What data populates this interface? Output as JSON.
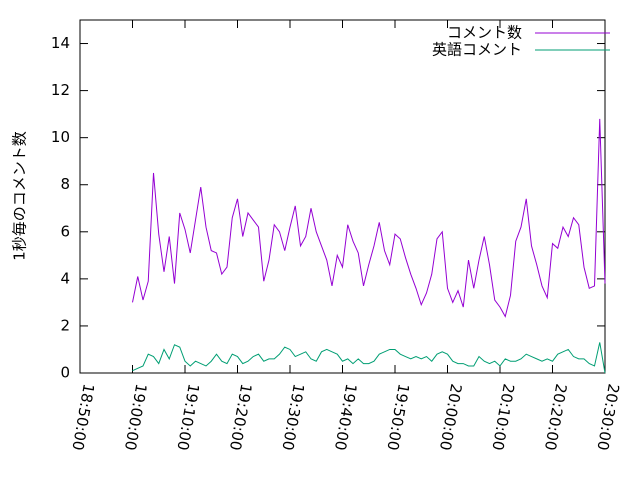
{
  "chart_data": {
    "type": "line",
    "ylabel": "1秒毎のコメント数",
    "xlim": [
      "18:50:00",
      "20:30:00"
    ],
    "xticks": [
      "18:50:00",
      "19:00:00",
      "19:10:00",
      "19:20:00",
      "19:30:00",
      "19:40:00",
      "19:50:00",
      "20:00:00",
      "20:10:00",
      "20:20:00",
      "20:30:00"
    ],
    "ylim": [
      0,
      15
    ],
    "yticks": [
      0,
      2,
      4,
      6,
      8,
      10,
      12,
      14
    ],
    "legend": "top-right",
    "x": [
      "19:00:00",
      "19:01:00",
      "19:02:00",
      "19:03:00",
      "19:04:00",
      "19:05:00",
      "19:06:00",
      "19:07:00",
      "19:08:00",
      "19:09:00",
      "19:10:00",
      "19:11:00",
      "19:12:00",
      "19:13:00",
      "19:14:00",
      "19:15:00",
      "19:16:00",
      "19:17:00",
      "19:18:00",
      "19:19:00",
      "19:20:00",
      "19:21:00",
      "19:22:00",
      "19:23:00",
      "19:24:00",
      "19:25:00",
      "19:26:00",
      "19:27:00",
      "19:28:00",
      "19:29:00",
      "19:30:00",
      "19:31:00",
      "19:32:00",
      "19:33:00",
      "19:34:00",
      "19:35:00",
      "19:36:00",
      "19:37:00",
      "19:38:00",
      "19:39:00",
      "19:40:00",
      "19:41:00",
      "19:42:00",
      "19:43:00",
      "19:44:00",
      "19:45:00",
      "19:46:00",
      "19:47:00",
      "19:48:00",
      "19:49:00",
      "19:50:00",
      "19:51:00",
      "19:52:00",
      "19:53:00",
      "19:54:00",
      "19:55:00",
      "19:56:00",
      "19:57:00",
      "19:58:00",
      "19:59:00",
      "20:00:00",
      "20:01:00",
      "20:02:00",
      "20:03:00",
      "20:04:00",
      "20:05:00",
      "20:06:00",
      "20:07:00",
      "20:08:00",
      "20:09:00",
      "20:10:00",
      "20:11:00",
      "20:12:00",
      "20:13:00",
      "20:14:00",
      "20:15:00",
      "20:16:00",
      "20:17:00",
      "20:18:00",
      "20:19:00",
      "20:20:00",
      "20:21:00",
      "20:22:00",
      "20:23:00",
      "20:24:00",
      "20:25:00",
      "20:26:00",
      "20:27:00",
      "20:28:00",
      "20:29:00",
      "20:30:00"
    ],
    "series": [
      {
        "name": "コメント数",
        "color": "#9400d3",
        "values": [
          3.0,
          4.1,
          3.1,
          3.9,
          8.5,
          5.9,
          4.3,
          5.8,
          3.8,
          6.8,
          6.1,
          5.1,
          6.5,
          7.9,
          6.2,
          5.2,
          5.1,
          4.2,
          4.5,
          6.6,
          7.4,
          5.8,
          6.8,
          6.5,
          6.2,
          3.9,
          4.8,
          6.3,
          6.0,
          5.2,
          6.2,
          7.1,
          5.4,
          5.8,
          7.0,
          6.0,
          5.4,
          4.8,
          3.7,
          5.0,
          4.5,
          6.3,
          5.6,
          5.1,
          3.7,
          4.6,
          5.4,
          6.4,
          5.2,
          4.6,
          5.9,
          5.7,
          4.9,
          4.2,
          3.6,
          2.9,
          3.4,
          4.2,
          5.7,
          6.0,
          3.6,
          3.0,
          3.5,
          2.8,
          4.8,
          3.6,
          4.8,
          5.8,
          4.6,
          3.1,
          2.8,
          2.4,
          3.3,
          5.6,
          6.2,
          7.4,
          5.4,
          4.6,
          3.7,
          3.2,
          5.5,
          5.3,
          6.2,
          5.8,
          6.6,
          6.3,
          4.5,
          3.6,
          3.7,
          10.8,
          3.8
        ]
      },
      {
        "name": "英語コメント",
        "color": "#009e73",
        "values": [
          0.1,
          0.2,
          0.3,
          0.8,
          0.7,
          0.4,
          1.0,
          0.6,
          1.2,
          1.1,
          0.5,
          0.3,
          0.5,
          0.4,
          0.3,
          0.5,
          0.8,
          0.5,
          0.4,
          0.8,
          0.7,
          0.4,
          0.5,
          0.7,
          0.8,
          0.5,
          0.6,
          0.6,
          0.8,
          1.1,
          1.0,
          0.7,
          0.8,
          0.9,
          0.6,
          0.5,
          0.9,
          1.0,
          0.9,
          0.8,
          0.5,
          0.6,
          0.4,
          0.6,
          0.4,
          0.4,
          0.5,
          0.8,
          0.9,
          1.0,
          1.0,
          0.8,
          0.7,
          0.6,
          0.7,
          0.6,
          0.7,
          0.5,
          0.8,
          0.9,
          0.8,
          0.5,
          0.4,
          0.4,
          0.3,
          0.3,
          0.7,
          0.5,
          0.4,
          0.5,
          0.3,
          0.6,
          0.5,
          0.5,
          0.6,
          0.8,
          0.7,
          0.6,
          0.5,
          0.6,
          0.5,
          0.8,
          0.9,
          1.0,
          0.7,
          0.6,
          0.6,
          0.4,
          0.3,
          1.3,
          0.0
        ]
      }
    ]
  }
}
